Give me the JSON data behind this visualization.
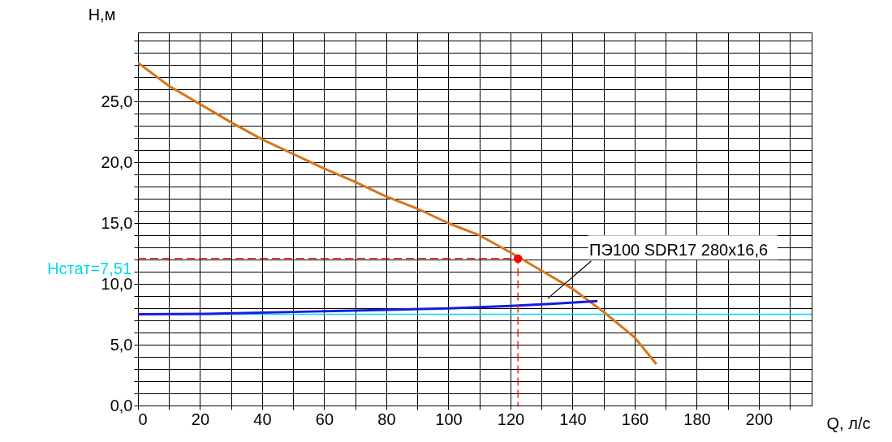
{
  "chart_data": {
    "type": "line",
    "xlabel": "Q, л/с",
    "ylabel": "H,м",
    "xlim": [
      0,
      217
    ],
    "ylim": [
      0,
      30.7
    ],
    "xticks": [
      0,
      {
        "value": 10,
        "label": null
      },
      20,
      {
        "value": 30,
        "label": null
      },
      40,
      {
        "value": 50,
        "label": null
      },
      60,
      {
        "value": 70,
        "label": null
      },
      80,
      {
        "value": 90,
        "label": null
      },
      100,
      {
        "value": 110,
        "label": null
      },
      120,
      {
        "value": 130,
        "label": null
      },
      140,
      {
        "value": 150,
        "label": null
      },
      160,
      {
        "value": 170,
        "label": null
      },
      180,
      {
        "value": 190,
        "label": null
      },
      200,
      {
        "value": 210,
        "label": null
      }
    ],
    "yticks": [
      {
        "value": 0,
        "label": "0,0"
      },
      {
        "value": 1,
        "label": null
      },
      {
        "value": 2,
        "label": null
      },
      {
        "value": 3,
        "label": null
      },
      {
        "value": 4,
        "label": null
      },
      {
        "value": 5,
        "label": "5,0"
      },
      {
        "value": 6,
        "label": null
      },
      {
        "value": 7,
        "label": null
      },
      {
        "value": 8,
        "label": null
      },
      {
        "value": 9,
        "label": null
      },
      {
        "value": 10,
        "label": "10,0"
      },
      {
        "value": 11,
        "label": null
      },
      {
        "value": 12,
        "label": null
      },
      {
        "value": 13,
        "label": null
      },
      {
        "value": 14,
        "label": null
      },
      {
        "value": 15,
        "label": "15,0"
      },
      {
        "value": 16,
        "label": null
      },
      {
        "value": 17,
        "label": null
      },
      {
        "value": 18,
        "label": null
      },
      {
        "value": 19,
        "label": null
      },
      {
        "value": 20,
        "label": "20,0"
      },
      {
        "value": 21,
        "label": null
      },
      {
        "value": 22,
        "label": null
      },
      {
        "value": 23,
        "label": null
      },
      {
        "value": 24,
        "label": null
      },
      {
        "value": 25,
        "label": "25,0"
      },
      {
        "value": 26,
        "label": null
      },
      {
        "value": 27,
        "label": null
      },
      {
        "value": 28,
        "label": null
      },
      {
        "value": 29,
        "label": null
      },
      {
        "value": 30,
        "label": null
      }
    ],
    "grid": true,
    "series": [
      {
        "color": "#d9741a",
        "x": [
          0,
          10,
          20,
          30,
          40,
          50,
          60,
          70,
          80,
          90,
          100,
          110,
          120,
          130,
          140,
          150,
          160,
          167
        ],
        "values": [
          28.2,
          26.3,
          24.8,
          23.3,
          21.9,
          20.7,
          19.5,
          18.4,
          17.2,
          16.2,
          15.0,
          14.0,
          12.6,
          11.1,
          9.6,
          7.7,
          5.6,
          3.4
        ]
      },
      {
        "name": "ПЭ100 SDR17 280x16,6",
        "color": "#1a1adf",
        "x": [
          0,
          25,
          50,
          75,
          100,
          120,
          135,
          148
        ],
        "values": [
          7.5,
          7.55,
          7.7,
          7.85,
          8.0,
          8.2,
          8.4,
          8.6
        ]
      },
      {
        "line_style": "dashed",
        "color": "#ff0000",
        "x": [
          0,
          122.4,
          122.4
        ],
        "values": [
          12.1,
          12.1,
          0
        ]
      },
      {
        "type": "scatter",
        "color": "#ff0000",
        "x": [
          122.4
        ],
        "values": [
          12.1
        ]
      }
    ],
    "ref_lines": [
      {
        "axis": "y",
        "value": 7.51,
        "label": "Нстат=7,51",
        "color": "#00d8f0"
      }
    ]
  }
}
